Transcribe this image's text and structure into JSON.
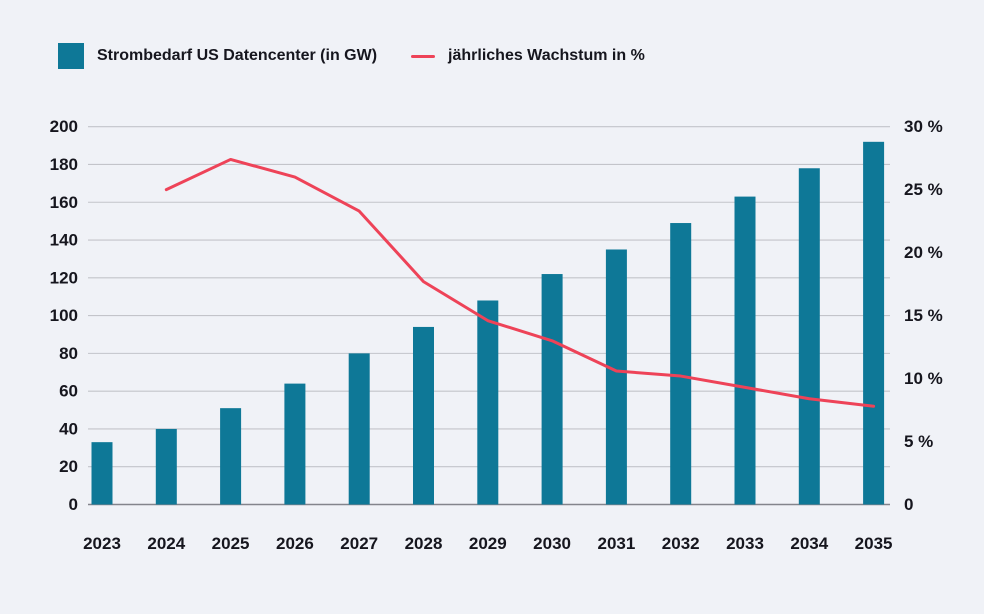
{
  "legend": {
    "bars_label": "Strombedarf US Datencenter (in GW)",
    "line_label": "jährliches Wachstum in %"
  },
  "colors": {
    "bar": "#0e7897",
    "line": "#ee4358",
    "grid": "#c3c4ca",
    "baseline": "#83848c",
    "text": "#16161e",
    "background": "#f0f2f7"
  },
  "chart_data": {
    "type": "bar",
    "subtype": "combo-bar-line-dual-axis",
    "title": "",
    "categories": [
      "2023",
      "2024",
      "2025",
      "2026",
      "2027",
      "2028",
      "2029",
      "2030",
      "2031",
      "2032",
      "2033",
      "2034",
      "2035"
    ],
    "series": [
      {
        "name": "Strombedarf US Datencenter (in GW)",
        "type": "bar",
        "axis": "left",
        "x": [
          2023,
          2024,
          2025,
          2026,
          2027,
          2028,
          2029,
          2030,
          2031,
          2032,
          2033,
          2034,
          2035
        ],
        "values": [
          33,
          40,
          51,
          64,
          80,
          94,
          108,
          122,
          135,
          149,
          163,
          178,
          192
        ]
      },
      {
        "name": "jährliches Wachstum in %",
        "type": "line",
        "axis": "right",
        "x": [
          2024,
          2025,
          2026,
          2027,
          2028,
          2029,
          2030,
          2031,
          2032,
          2033,
          2034,
          2035
        ],
        "values": [
          25,
          27.4,
          26,
          23.3,
          17.7,
          14.6,
          13,
          10.6,
          10.2,
          9.3,
          8.4,
          7.8
        ]
      }
    ],
    "left_axis": {
      "range": [
        0,
        200
      ],
      "ticks": [
        0,
        20,
        40,
        60,
        80,
        100,
        120,
        140,
        160,
        180,
        200
      ]
    },
    "right_axis": {
      "range": [
        0,
        30
      ],
      "ticks": [
        {
          "value": 30,
          "label": "30 %"
        },
        {
          "value": 25,
          "label": "25 %"
        },
        {
          "value": 20,
          "label": "20 %"
        },
        {
          "value": 15,
          "label": "15 %"
        },
        {
          "value": 10,
          "label": "10 %"
        },
        {
          "value": 5,
          "label": "5 %"
        },
        {
          "value": 0,
          "label": "0"
        }
      ]
    },
    "grid": true,
    "legend_position": "top-left"
  }
}
